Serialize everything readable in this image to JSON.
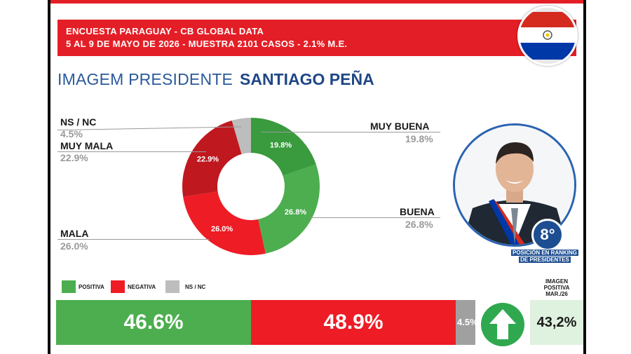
{
  "header": {
    "line1": "ENCUESTA PARAGUAY - CB GLOBAL DATA",
    "line2": "5 AL 9 DE MAYO DE 2026 - MUESTRA 2101 CASOS  - 2.1% M.E."
  },
  "title": {
    "left": "IMAGEM PRESIDENTE",
    "right": "SANTIAGO PEÑA"
  },
  "labels": {
    "ns_nc": {
      "name": "NS / NC",
      "value": "4.5%"
    },
    "muy_mala": {
      "name": "MUY MALA",
      "value": "22.9%"
    },
    "mala": {
      "name": "MALA",
      "value": "26.0%"
    },
    "muy_buena": {
      "name": "MUY BUENA",
      "value": "19.8%"
    },
    "buena": {
      "name": "BUENA",
      "value": "26.8%"
    }
  },
  "rank": {
    "value": "8°",
    "caption_line1": "POSICIÓN EN RANKING",
    "caption_line2": "DE PRESIDENTES"
  },
  "legend": {
    "positiva": "POSITIVA",
    "negativa": "NEGATIVA",
    "ns_nc": "NS / NC"
  },
  "summary": {
    "positiva": "46.6%",
    "negativa": "48.9%",
    "ns_nc": "4.5%"
  },
  "imagen_positiva": {
    "title_line1": "IMAGEN",
    "title_line2": "POSITIVA",
    "title_line3": "MAR./26",
    "value": "43,2%"
  },
  "colors": {
    "red": "#e41e26",
    "green": "#4cae4f",
    "dark_red": "#c0181f",
    "gray": "#bdbdbd",
    "blue": "#1d4e91"
  },
  "icons": {
    "flag": "paraguay-flag-icon",
    "arrow": "arrow-up-icon",
    "photo": "president-portrait"
  },
  "chart_data": [
    {
      "type": "pie",
      "categories": [
        "MUY BUENA",
        "BUENA",
        "MALA",
        "MUY MALA",
        "NS / NC"
      ],
      "values": [
        19.8,
        26.8,
        26.0,
        22.9,
        4.5
      ],
      "value_labels": [
        "19.8%",
        "26.8%",
        "26.0%",
        "22.9%",
        ""
      ],
      "colors": [
        "#3a9a3e",
        "#4cae4f",
        "#ee1c25",
        "#c0181f",
        "#bdbdbd"
      ],
      "donut": true
    },
    {
      "type": "bar",
      "orientation": "horizontal-stacked",
      "categories": [
        "POSITIVA",
        "NEGATIVA",
        "NS / NC"
      ],
      "values": [
        46.6,
        48.9,
        4.5
      ],
      "colors": [
        "#4cae4f",
        "#ee1c25",
        "#a0a0a0"
      ]
    }
  ]
}
